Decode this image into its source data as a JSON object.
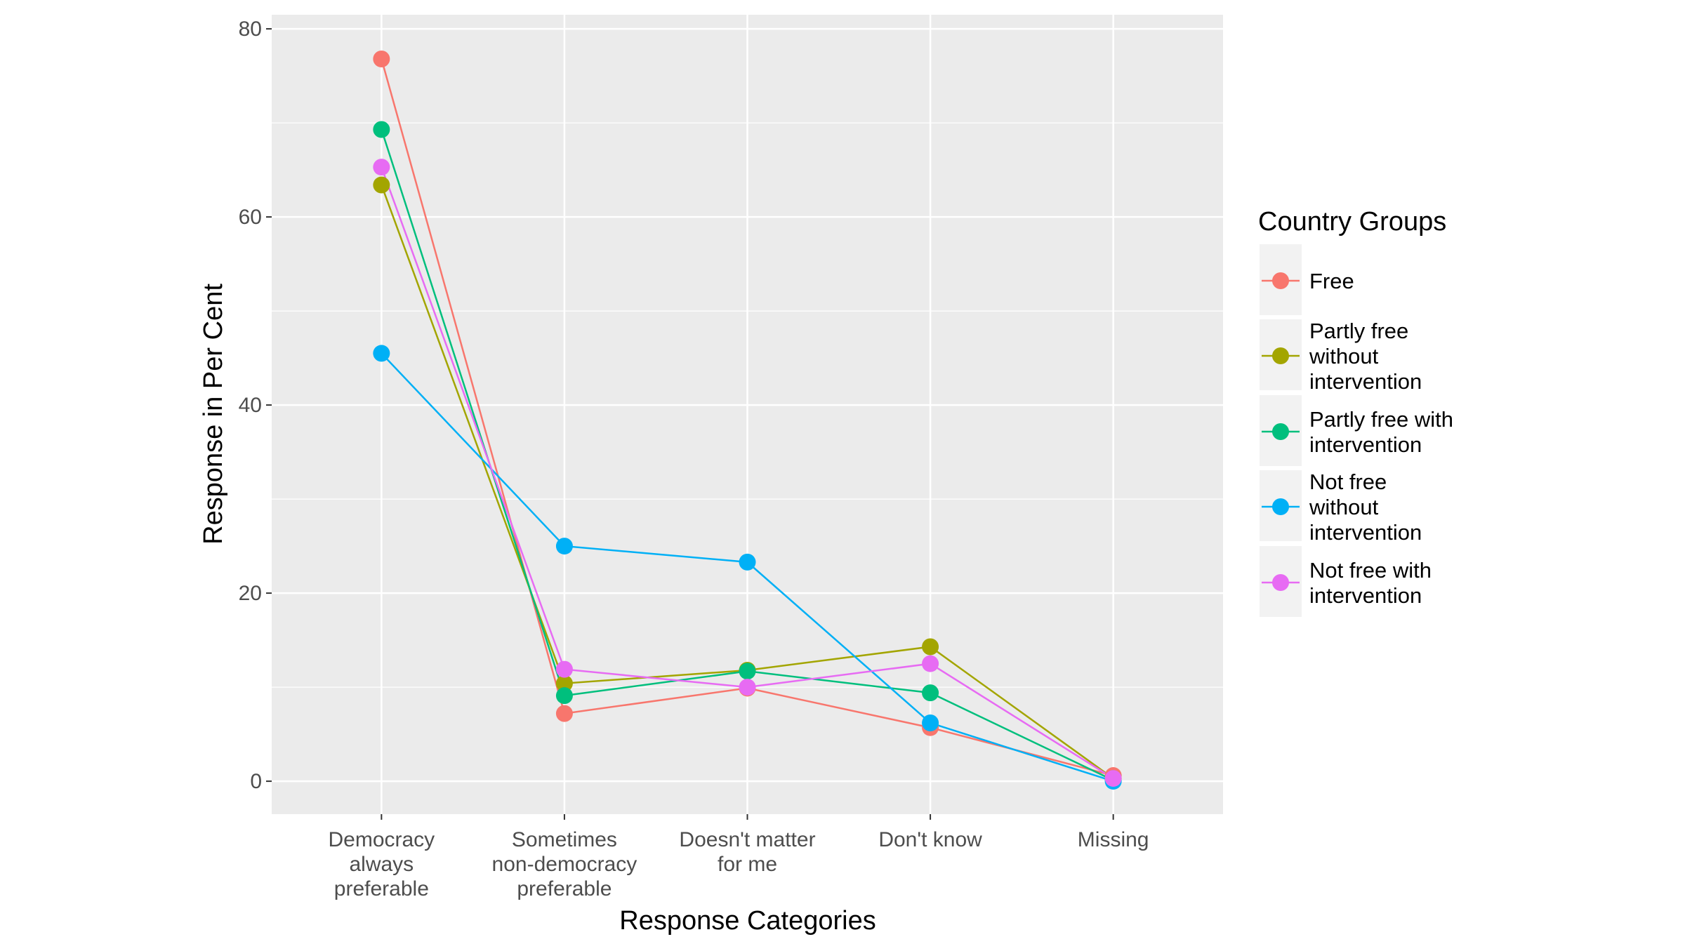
{
  "chart_data": {
    "type": "line",
    "title": "",
    "xlabel": "Response Categories",
    "ylabel": "Response in Per Cent",
    "categories": [
      [
        "Democracy",
        "always",
        "preferable"
      ],
      [
        "Sometimes",
        "non-democracy",
        "preferable"
      ],
      [
        "Doesn't matter",
        "for me"
      ],
      [
        "Don't know"
      ],
      [
        "Missing"
      ]
    ],
    "ylim": [
      -3.5,
      81.5
    ],
    "yticks": [
      0,
      20,
      40,
      60,
      80
    ],
    "grid": true,
    "legend_title": "Country Groups",
    "legend_placement": "right",
    "series": [
      {
        "name": [
          "Free"
        ],
        "color": "#F8766D",
        "values": [
          76.8,
          7.2,
          9.9,
          5.7,
          0.6
        ]
      },
      {
        "name": [
          "Partly free",
          "without",
          "intervention"
        ],
        "color": "#A3A500",
        "values": [
          63.4,
          10.4,
          11.8,
          14.3,
          0.3
        ]
      },
      {
        "name": [
          "Partly free with",
          "intervention"
        ],
        "color": "#00BF7D",
        "values": [
          69.3,
          9.1,
          11.7,
          9.4,
          0.1
        ]
      },
      {
        "name": [
          "Not free",
          "without",
          "intervention"
        ],
        "color": "#00B0F6",
        "values": [
          45.5,
          25.0,
          23.3,
          6.2,
          0.0
        ]
      },
      {
        "name": [
          "Not free with",
          "intervention"
        ],
        "color": "#E76BF3",
        "values": [
          65.3,
          11.9,
          10.0,
          12.5,
          0.3
        ]
      }
    ]
  }
}
